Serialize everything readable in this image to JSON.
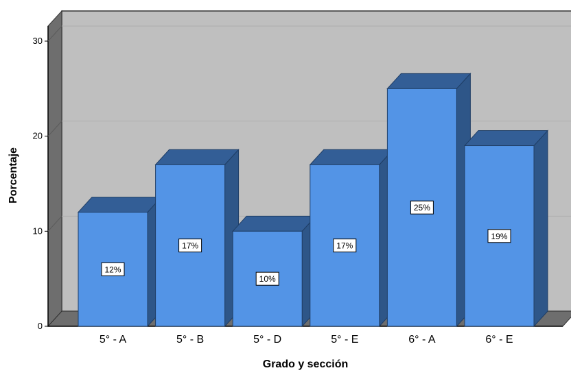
{
  "chart_data": {
    "type": "bar",
    "title": "",
    "xlabel": "Grado y sección",
    "ylabel": "Porcentaje",
    "categories": [
      "5° - A",
      "5° - B",
      "5° - D",
      "5° - E",
      "6° - A",
      "6° - E"
    ],
    "values": [
      12,
      17,
      10,
      17,
      25,
      19
    ],
    "data_labels": [
      "12%",
      "17%",
      "10%",
      "17%",
      "25%",
      "19%"
    ],
    "yticks": [
      0,
      10,
      20,
      30
    ],
    "ylim": [
      0,
      30
    ],
    "grid": true,
    "style": "3d",
    "colors": {
      "bar_front": "#5394E6",
      "bar_top": "#335E96",
      "bar_side": "#2E5688",
      "plot_background": "#BFBFBF",
      "left_wall": "#6E6E6E",
      "floor": "#6E6E6E",
      "gridline": "#AEAEAE"
    }
  }
}
